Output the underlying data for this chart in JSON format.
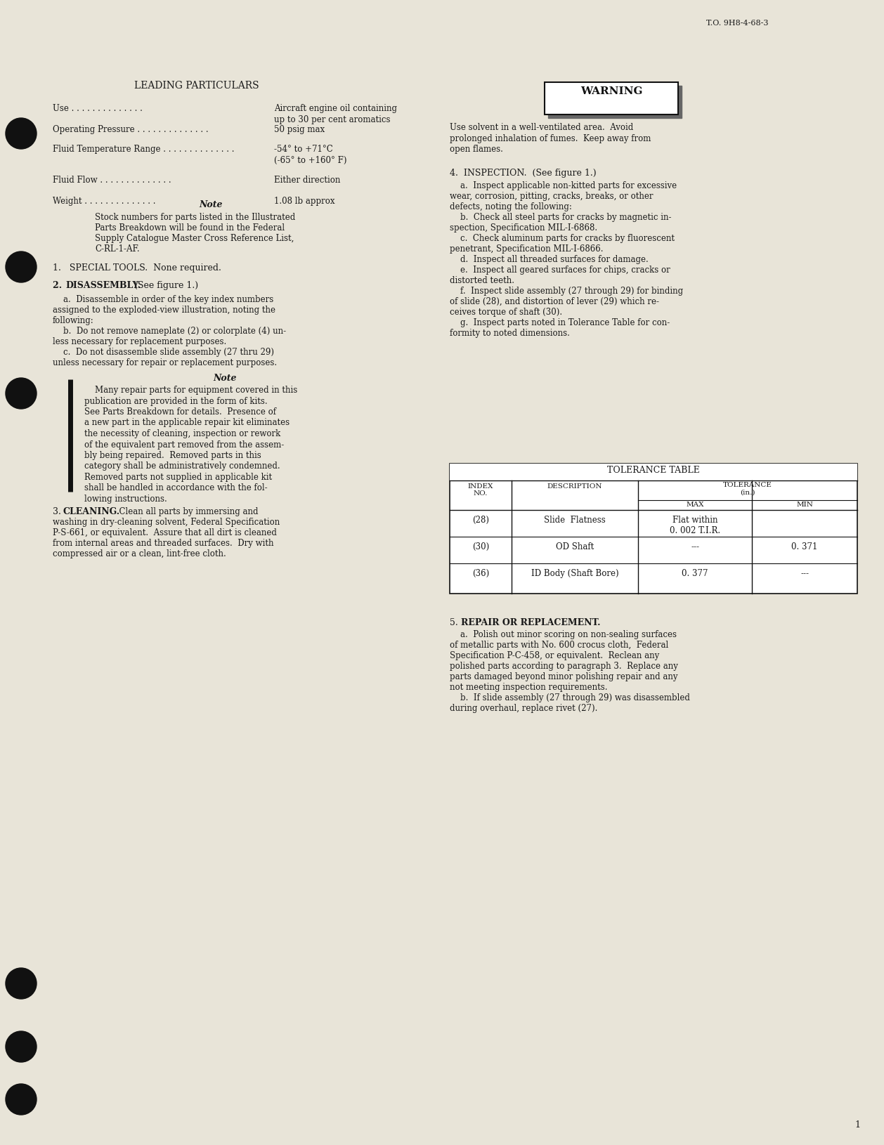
{
  "page_background": "#e8e4d8",
  "text_color": "#1a1a1a",
  "header_text": "T.O. 9H8-4-68-3",
  "page_number": "1",
  "title": "LEADING PARTICULARS",
  "leading_particulars": [
    [
      "Use",
      "Aircraft engine oil containing\nup to 30 per cent aromatics"
    ],
    [
      "Operating Pressure",
      "50 psig max"
    ],
    [
      "Fluid Temperature Range",
      "-54° to +71°C\n(-65° to +160° F)"
    ],
    [
      "Fluid Flow",
      "Either direction"
    ],
    [
      "Weight",
      "1.08 lb approx"
    ]
  ],
  "note1_title": "Note",
  "note1_text": "Stock numbers for parts listed in the Illustrated\nParts Breakdown will be found in the Federal\nSupply Catalogue Master Cross Reference List,\nC-RL-1-AF.",
  "section1": "1.   SPECIAL TOOLS.  None required.",
  "section2_title": "2.   DISASSEMBLY.  (See figure 1.)",
  "section2_text": "    a.  Disassemble in order of the key index numbers\nassigned to the exploded-view illustration, noting the\nfollowing:\n    b.  Do not remove nameplate (2) or colorplate (4) un-\nless necessary for replacement purposes.\n    c.  Do not disassemble slide assembly (27 thru 29)\nunless necessary for repair or replacement purposes.",
  "note2_title": "Note",
  "note2_text": "    Many repair parts for equipment covered in this\npublication are provided in the form of kits.\nSee Parts Breakdown for details.  Presence of\na new part in the applicable repair kit eliminates\nthe necessity of cleaning, inspection or rework\nof the equivalent part removed from the assem-\nbly being repaired.  Removed parts in this\ncategory shall be administratively condemned.\nRemoved parts not supplied in applicable kit\nshall be handled in accordance with the fol-\nlowing instructions.",
  "section3_title": "3.  CLEANING.",
  "section3_text": "Clean all parts by immersing and\nwashing in dry-cleaning solvent, Federal Specification\nP-S-661, or equivalent.  Assure that all dirt is cleaned\nfrom internal areas and threaded surfaces.  Dry with\ncompressed air or a clean, lint-free cloth.",
  "warning_label": "WARNING",
  "warning_text": "Use solvent in a well-ventilated area.  Avoid\nprolonged inhalation of fumes.  Keep away from\nopen flames.",
  "section4_title": "4.  INSPECTION.  (See figure 1.)",
  "section4_text": "    a.  Inspect applicable non-kitted parts for excessive\nwear, corrosion, pitting, cracks, breaks, or other\ndefects, noting the following:\n    b.  Check all steel parts for cracks by magnetic in-\nspection, Specification MIL-I-6868.\n    c.  Check aluminum parts for cracks by fluorescent\npenetrant, Specification MIL-I-6866.\n    d.  Inspect all threaded surfaces for damage.\n    e.  Inspect all geared surfaces for chips, cracks or\ndistorted teeth.\n    f.  Inspect slide assembly (27 through 29) for binding\nof slide (28), and distortion of lever (29) which re-\nceives torque of shaft (30).\n    g.  Inspect parts noted in Tolerance Table for con-\nformity to noted dimensions.",
  "table_title": "TOLERANCE TABLE",
  "table_headers": [
    "INDEX\nNO.",
    "DESCRIPTION",
    "TOLERANCE\n(in.)\nMAX",
    "MIN"
  ],
  "table_rows": [
    [
      "(28)",
      "Slide  Flatness",
      "Flat within\n0. 002 T.I.R.",
      ""
    ],
    [
      "(30)",
      "OD Shaft",
      "---",
      "0. 371"
    ],
    [
      "(36)",
      "ID Body (Shaft Bore)",
      "0. 377",
      "---"
    ]
  ],
  "section5_title": "5.  REPAIR OR REPLACEMENT.",
  "section5_text": "    a.  Polish out minor scoring on non-sealing surfaces\nof metallic parts with No. 600 crocus cloth,  Federal\nSpecification P-C-458, or equivalent.  Reclean any\npolished parts according to paragraph 3.  Replace any\nparts damaged beyond minor polishing repair and any\nnot meeting inspection requirements.\n    b.  If slide assembly (27 through 29) was disassembled\nduring overhaul, replace rivet (27)."
}
